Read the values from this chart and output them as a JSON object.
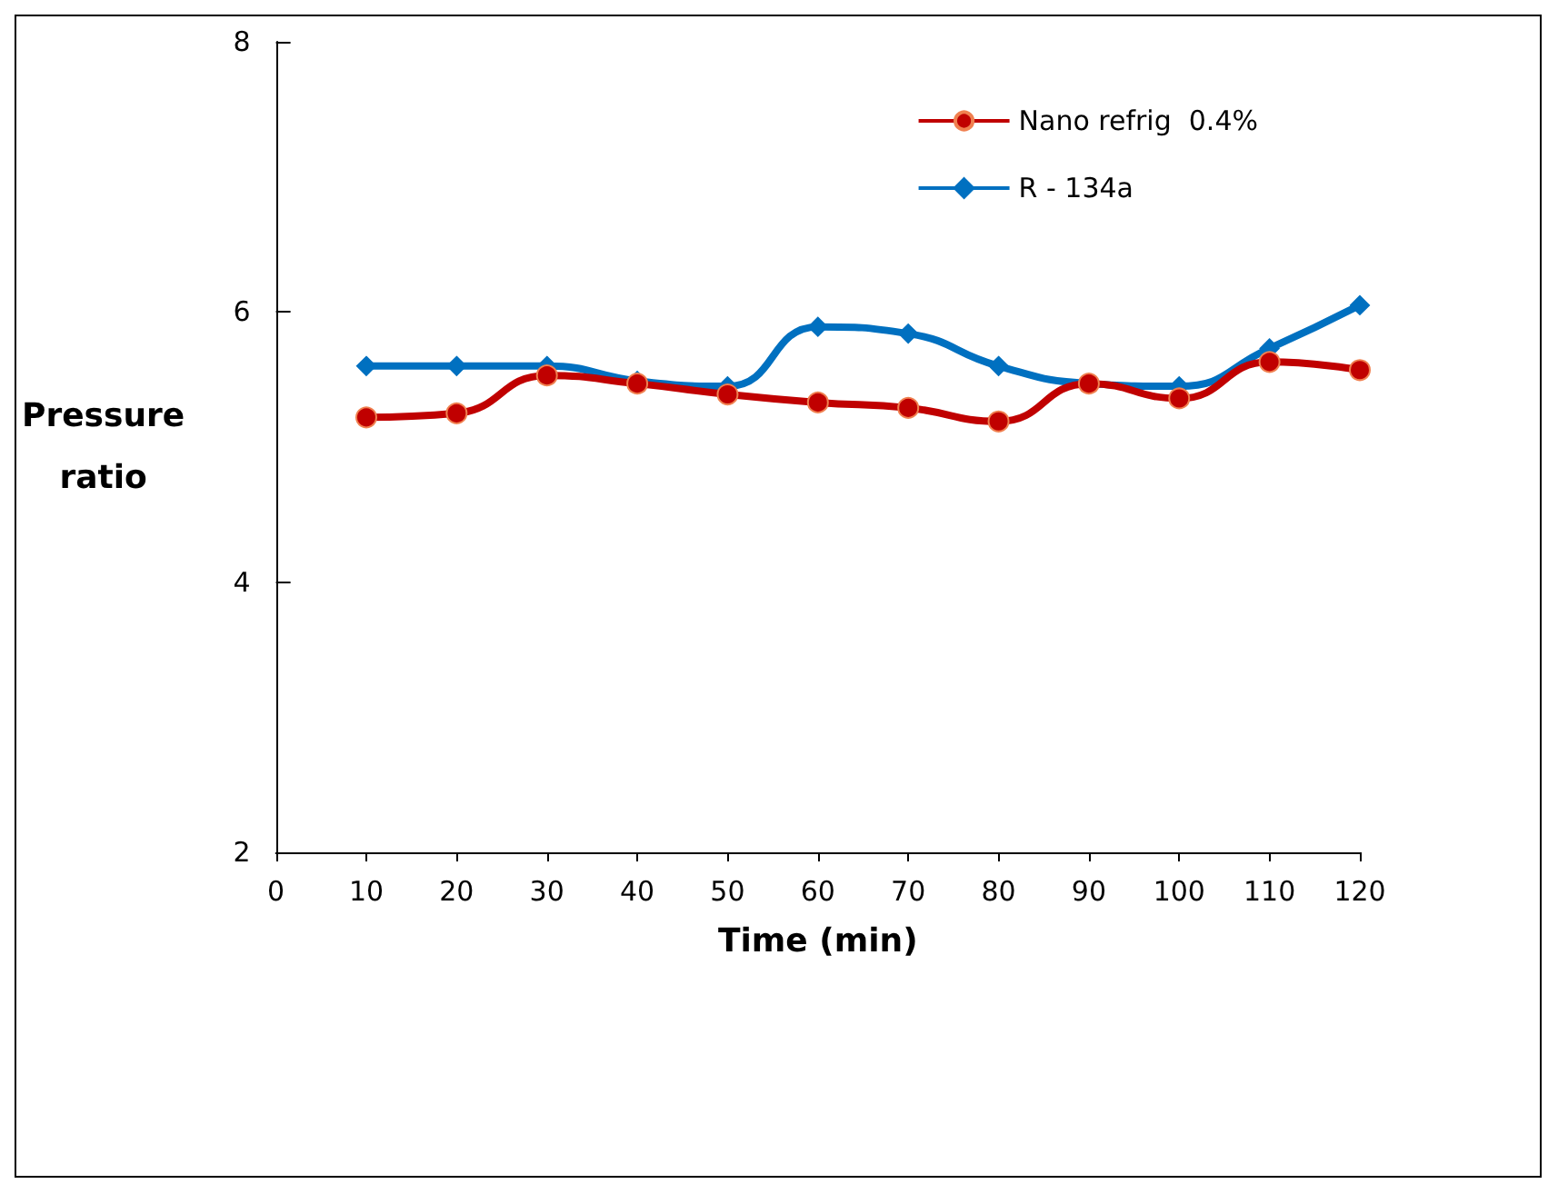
{
  "chart_data": {
    "type": "line",
    "xlabel": "Time (min)",
    "ylabel": "Pressure ratio",
    "x": [
      10,
      20,
      30,
      40,
      50,
      60,
      70,
      80,
      90,
      100,
      110,
      120
    ],
    "series": [
      {
        "name": "Nano refrig  0.4%",
        "color": "#c00000",
        "marker": "circle",
        "values": [
          5.22,
          5.25,
          5.53,
          5.47,
          5.39,
          5.33,
          5.29,
          5.19,
          5.47,
          5.36,
          5.63,
          5.57
        ]
      },
      {
        "name": "R - 134a",
        "color": "#0070c0",
        "marker": "diamond",
        "values": [
          5.6,
          5.6,
          5.6,
          5.49,
          5.45,
          5.89,
          5.84,
          5.6,
          5.47,
          5.45,
          5.73,
          6.05
        ]
      }
    ],
    "xlim": [
      0,
      120
    ],
    "xticks": [
      0,
      10,
      20,
      30,
      40,
      50,
      60,
      70,
      80,
      90,
      100,
      110,
      120
    ],
    "ylim": [
      2,
      8
    ],
    "yticks": [
      2,
      4,
      6,
      8
    ],
    "grid": false,
    "legend": "top right"
  }
}
